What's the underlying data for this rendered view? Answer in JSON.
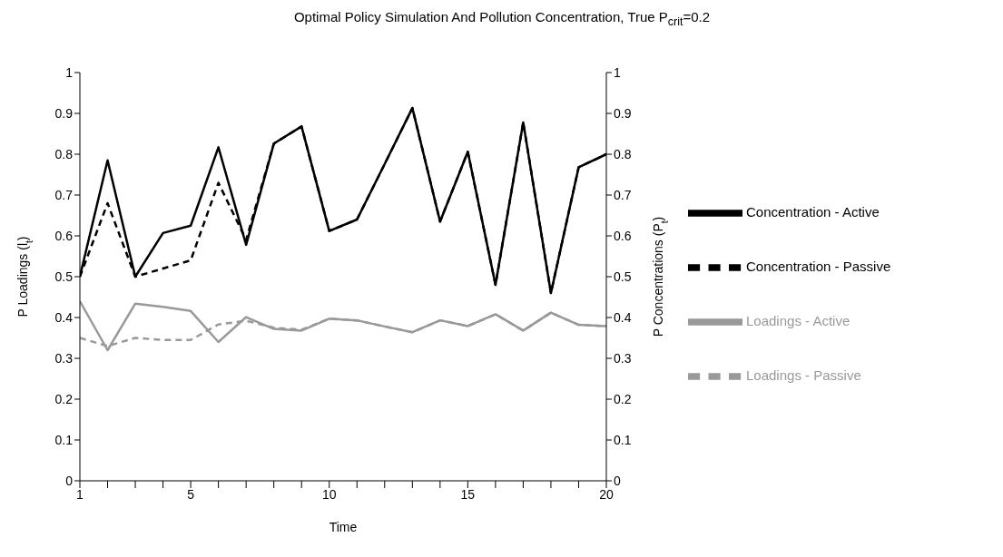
{
  "chart_data": {
    "type": "line",
    "title": "Optimal Policy Simulation And Pollution Concentration, True P$_{crit}$=0.2",
    "xlabel": "Time",
    "ylabel": "P Loadings (l$_{t}$)",
    "y2label": "P Concentrations (P$_{t}$)",
    "x": [
      1,
      2,
      3,
      4,
      5,
      6,
      7,
      8,
      9,
      10,
      11,
      12,
      13,
      14,
      15,
      16,
      17,
      18,
      19,
      20
    ],
    "xlim": [
      1,
      20
    ],
    "xticks": [
      1,
      {
        "value": 2,
        "label": null
      },
      {
        "value": 3,
        "label": null
      },
      {
        "value": 4,
        "label": null
      },
      5,
      {
        "value": 6,
        "label": null
      },
      {
        "value": 7,
        "label": null
      },
      {
        "value": 8,
        "label": null
      },
      {
        "value": 9,
        "label": null
      },
      10,
      {
        "value": 11,
        "label": null
      },
      {
        "value": 12,
        "label": null
      },
      {
        "value": 13,
        "label": null
      },
      {
        "value": 14,
        "label": null
      },
      15,
      {
        "value": 16,
        "label": null
      },
      {
        "value": 17,
        "label": null
      },
      {
        "value": 18,
        "label": null
      },
      {
        "value": 19,
        "label": null
      },
      20
    ],
    "ylim": [
      0,
      1
    ],
    "yticks": [
      0,
      0.1,
      0.2,
      0.3,
      0.4,
      0.5,
      0.6,
      0.7,
      0.8,
      0.9,
      1
    ],
    "y2lim": [
      0,
      1
    ],
    "y2ticks": [
      0,
      0.1,
      0.2,
      0.3,
      0.4,
      0.5,
      0.6,
      0.7,
      0.8,
      0.9,
      1
    ],
    "grid": false,
    "legend": "right",
    "marker": "none",
    "series": [
      {
        "name": "Loadings - Passive",
        "color": "#999999",
        "line_style": "dashed",
        "values": [
          0.35,
          0.33,
          0.35,
          0.345,
          0.345,
          0.383,
          0.392,
          0.375,
          0.37,
          0.397,
          0.393,
          0.378,
          0.364,
          0.393,
          0.379,
          0.408,
          0.368,
          0.412,
          0.382,
          0.379
        ]
      },
      {
        "name": "Loadings - Active",
        "color": "#999999",
        "line_style": "solid",
        "values": [
          0.44,
          0.32,
          0.434,
          0.426,
          0.416,
          0.34,
          0.401,
          0.372,
          0.368,
          0.397,
          0.393,
          0.378,
          0.364,
          0.393,
          0.379,
          0.408,
          0.368,
          0.412,
          0.382,
          0.379
        ]
      },
      {
        "name": "Concentration - Active",
        "color": "#000000",
        "line_style": "solid",
        "axis": "y2",
        "values": [
          0.5,
          0.785,
          0.5,
          0.607,
          0.625,
          0.817,
          0.578,
          0.826,
          0.868,
          0.612,
          0.64,
          0.776,
          0.913,
          0.635,
          0.806,
          0.48,
          0.878,
          0.46,
          0.768,
          0.8
        ]
      },
      {
        "name": "Concentration - Passive",
        "color": "#000000",
        "line_style": "dashed",
        "axis": "y2",
        "values": [
          0.5,
          0.68,
          0.5,
          0.52,
          0.54,
          0.73,
          0.59,
          0.826,
          0.868,
          0.612,
          0.64,
          0.776,
          0.913,
          0.635,
          0.806,
          0.48,
          0.878,
          0.46,
          0.768,
          0.8
        ]
      }
    ]
  }
}
